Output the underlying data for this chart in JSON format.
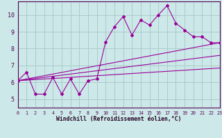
{
  "background_color": "#cce8e8",
  "grid_color": "#aacccc",
  "line_color": "#990099",
  "xlabel": "Windchill (Refroidissement éolien,°C)",
  "xlim": [
    0,
    23
  ],
  "ylim": [
    4.5,
    10.8
  ],
  "yticks": [
    5,
    6,
    7,
    8,
    9,
    10
  ],
  "xticks": [
    0,
    1,
    2,
    3,
    4,
    5,
    6,
    7,
    8,
    9,
    10,
    11,
    12,
    13,
    14,
    15,
    16,
    17,
    18,
    19,
    20,
    21,
    22,
    23
  ],
  "main_x": [
    0,
    1,
    2,
    3,
    4,
    5,
    6,
    7,
    8,
    9,
    10,
    11,
    12,
    13,
    14,
    15,
    16,
    17,
    18,
    19,
    20,
    21,
    22,
    23
  ],
  "main_y": [
    6.1,
    6.6,
    5.3,
    5.3,
    6.3,
    5.3,
    6.2,
    5.3,
    6.1,
    6.2,
    8.4,
    9.3,
    9.9,
    8.8,
    9.7,
    9.4,
    10.0,
    10.55,
    9.5,
    9.1,
    8.7,
    8.7,
    8.35,
    8.35
  ],
  "linear_lines": [
    {
      "x": [
        0,
        23
      ],
      "y": [
        6.1,
        8.35
      ]
    },
    {
      "x": [
        0,
        23
      ],
      "y": [
        6.1,
        7.6
      ]
    },
    {
      "x": [
        0,
        23
      ],
      "y": [
        6.1,
        6.85
      ]
    }
  ],
  "spine_color": "#550055",
  "tick_color": "#550055",
  "label_color": "#220022"
}
